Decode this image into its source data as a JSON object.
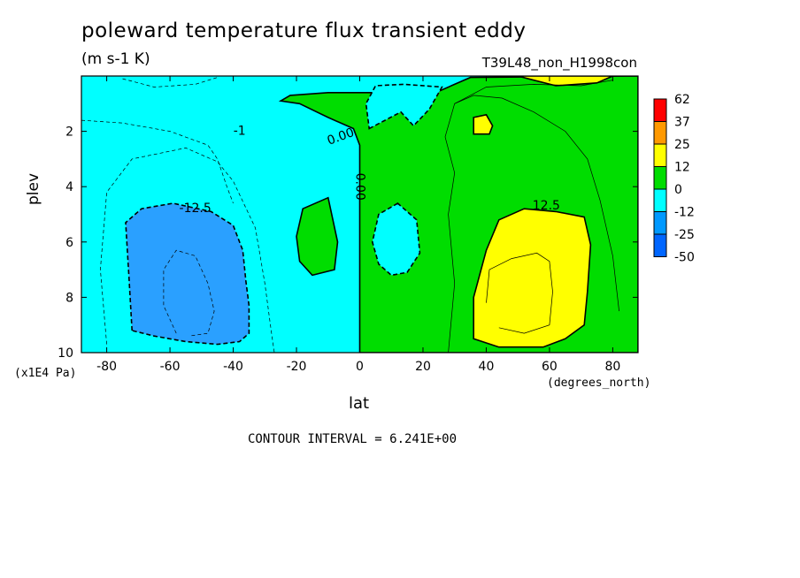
{
  "title": "poleward temperature flux transient eddy",
  "units": "(m s-1 K)",
  "dataset": "T39L48_non_H1998con",
  "contour_interval": "CONTOUR INTERVAL = 6.241E+00",
  "chart_data": {
    "type": "heatmap",
    "title": "poleward temperature flux transient eddy",
    "units": "(m s-1 K)",
    "xlabel": "lat",
    "xunit": "(degrees_north)",
    "ylabel": "plev",
    "yunit": "(x1E4 Pa)",
    "xlim": [
      -88,
      88
    ],
    "ylim": [
      10,
      0
    ],
    "xticks": [
      -80,
      -60,
      -40,
      -20,
      0,
      20,
      40,
      60,
      80
    ],
    "yticks": [
      2,
      4,
      6,
      8,
      10
    ],
    "colorbar": {
      "labels": [
        "62",
        "37",
        "25",
        "12",
        "0",
        "-12",
        "-25",
        "-50"
      ],
      "colors": [
        "#ff0000",
        "#ff9900",
        "#ffff00",
        "#00dd00",
        "#00ffff",
        "#0099ff",
        "#0066ff"
      ]
    },
    "contour_labels": [
      "0.00",
      "0.00",
      "-12.5",
      "12.5",
      "-1"
    ],
    "regions": [
      {
        "name": "negative",
        "level": -25,
        "color": "#2aa0ff",
        "polygon": [
          [
            -72,
            9.2
          ],
          [
            -73,
            7.2
          ],
          [
            -74,
            5.3
          ],
          [
            -69,
            4.8
          ],
          [
            -59,
            4.6
          ],
          [
            -47,
            4.9
          ],
          [
            -40,
            5.4
          ],
          [
            -37,
            6.3
          ],
          [
            -36,
            7.4
          ],
          [
            -35,
            8.3
          ],
          [
            -35,
            9.3
          ],
          [
            -38,
            9.6
          ],
          [
            -45,
            9.7
          ],
          [
            -55,
            9.6
          ],
          [
            -65,
            9.4
          ]
        ]
      },
      {
        "name": "positive",
        "level": 0,
        "color": "#00dd00",
        "polygon": [
          [
            0,
            10
          ],
          [
            0,
            2.5
          ],
          [
            -2,
            1.9
          ],
          [
            -10,
            1.5
          ],
          [
            -19,
            1.0
          ],
          [
            -25,
            0.9
          ],
          [
            -22,
            0.7
          ],
          [
            -10,
            0.6
          ],
          [
            5,
            0.6
          ],
          [
            14,
            0.5
          ],
          [
            24,
            0.6
          ],
          [
            30,
            0.3
          ],
          [
            35,
            0.05
          ],
          [
            88,
            0.0
          ],
          [
            88,
            10
          ]
        ]
      },
      {
        "name": "negative",
        "level": -12,
        "color": "#00ffff",
        "polygon": [
          [
            3,
            1.9
          ],
          [
            13,
            1.3
          ],
          [
            17,
            1.8
          ],
          [
            22,
            1.2
          ],
          [
            26,
            0.4
          ],
          [
            14,
            0.3
          ],
          [
            5,
            0.35
          ],
          [
            2,
            1.0
          ]
        ]
      },
      {
        "name": "negative",
        "level": -12,
        "color": "#00ffff",
        "polygon": [
          [
            12,
            4.6
          ],
          [
            6,
            5.0
          ],
          [
            4,
            6.0
          ],
          [
            6,
            6.8
          ],
          [
            10,
            7.2
          ],
          [
            15,
            7.1
          ],
          [
            19,
            6.4
          ],
          [
            18,
            5.2
          ]
        ]
      },
      {
        "name": "positive",
        "level": 0,
        "color": "#00dd00",
        "polygon": [
          [
            -10,
            4.4
          ],
          [
            -18,
            4.8
          ],
          [
            -20,
            5.8
          ],
          [
            -19,
            6.7
          ],
          [
            -15,
            7.2
          ],
          [
            -8,
            7.0
          ],
          [
            -7,
            6.0
          ]
        ]
      },
      {
        "name": "positive",
        "level": 12,
        "color": "#ffff00",
        "polygon": [
          [
            44,
            9.8
          ],
          [
            36,
            9.5
          ],
          [
            36,
            8.0
          ],
          [
            40,
            6.3
          ],
          [
            44,
            5.2
          ],
          [
            52,
            4.8
          ],
          [
            62,
            4.9
          ],
          [
            71,
            5.1
          ],
          [
            73,
            6.1
          ],
          [
            72,
            7.8
          ],
          [
            71,
            9.0
          ],
          [
            65,
            9.5
          ],
          [
            58,
            9.8
          ]
        ]
      },
      {
        "name": "positive",
        "level": 12,
        "color": "#ffff00",
        "polygon": [
          [
            36,
            1.5
          ],
          [
            40,
            1.4
          ],
          [
            42,
            1.8
          ],
          [
            41,
            2.1
          ],
          [
            36,
            2.1
          ]
        ]
      },
      {
        "name": "positive",
        "level": 12,
        "color": "#ffff00",
        "polygon": [
          [
            50,
            0.0
          ],
          [
            80,
            0.0
          ],
          [
            75,
            0.25
          ],
          [
            62,
            0.35
          ],
          [
            55,
            0.15
          ]
        ]
      }
    ]
  }
}
